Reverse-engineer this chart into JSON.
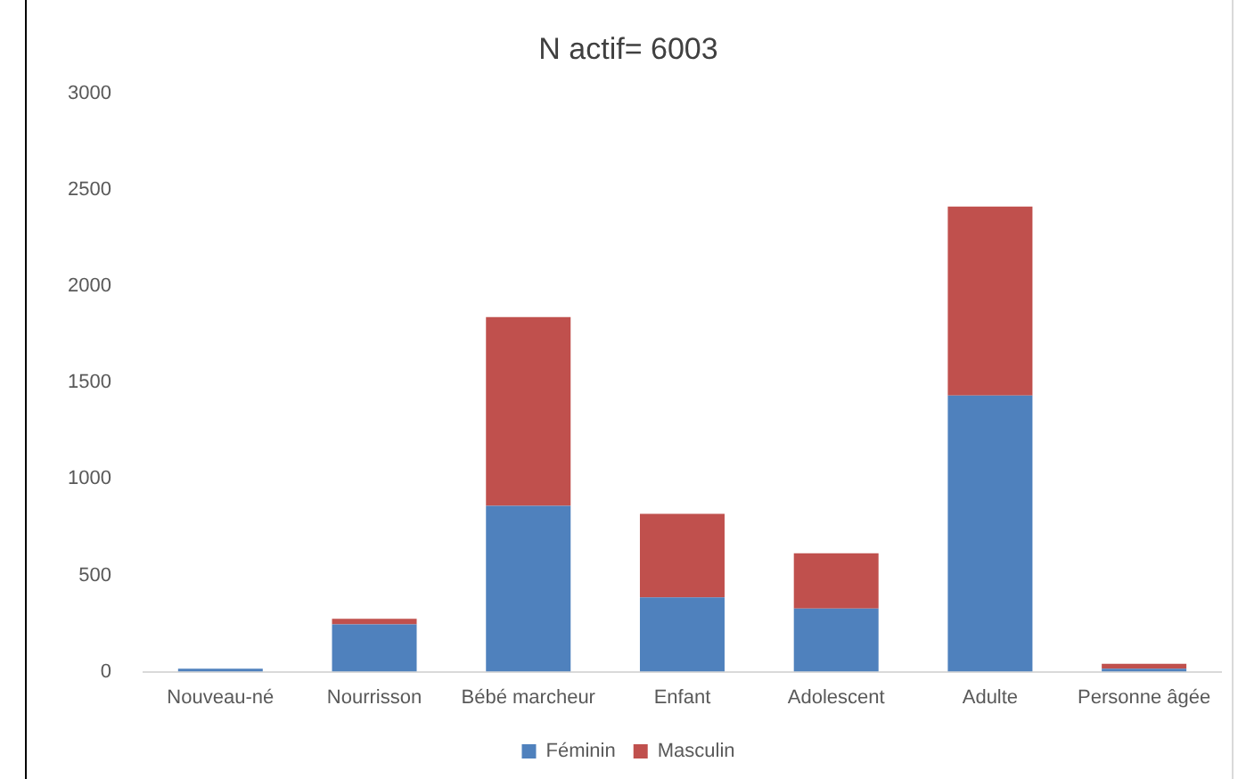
{
  "chart_data": {
    "type": "bar",
    "title": "N actif= 6003",
    "categories": [
      "Nouveau-né",
      "Nourrisson",
      "Bébé marcheur",
      "Enfant",
      "Adolescent",
      "Adulte",
      "Personne âgée"
    ],
    "series": [
      {
        "name": "Féminin",
        "color": "#4f81bd",
        "values": [
          15,
          245,
          860,
          385,
          328,
          1433,
          16
        ]
      },
      {
        "name": "Masculin",
        "color": "#c0504d",
        "values": [
          0,
          29,
          980,
          434,
          286,
          980,
          25
        ]
      }
    ],
    "stacked": true,
    "ylim": [
      0,
      3000
    ],
    "yticks": [
      0,
      500,
      1000,
      1500,
      2000,
      2500,
      3000
    ],
    "grid": false,
    "legend": "bottom"
  }
}
